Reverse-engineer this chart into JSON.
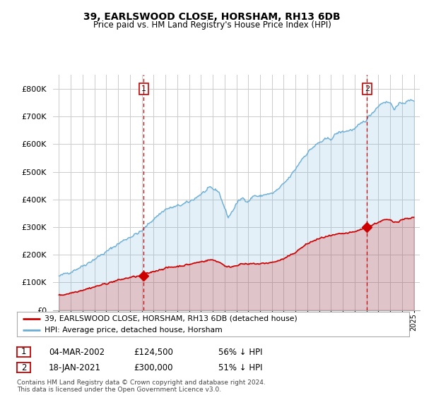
{
  "title": "39, EARLSWOOD CLOSE, HORSHAM, RH13 6DB",
  "subtitle": "Price paid vs. HM Land Registry's House Price Index (HPI)",
  "legend_line1": "39, EARLSWOOD CLOSE, HORSHAM, RH13 6DB (detached house)",
  "legend_line2": "HPI: Average price, detached house, Horsham",
  "sale1_date": "04-MAR-2002",
  "sale1_price": "£124,500",
  "sale1_hpi": "56% ↓ HPI",
  "sale2_date": "18-JAN-2021",
  "sale2_price": "£300,000",
  "sale2_hpi": "51% ↓ HPI",
  "footnote": "Contains HM Land Registry data © Crown copyright and database right 2024.\nThis data is licensed under the Open Government Licence v3.0.",
  "hpi_color": "#6baed6",
  "price_color": "#cc0000",
  "vline_color": "#cc0000",
  "background_color": "#ffffff",
  "grid_color": "#cccccc",
  "ylim": [
    0,
    850000
  ],
  "yticks": [
    0,
    100000,
    200000,
    300000,
    400000,
    500000,
    600000,
    700000,
    800000
  ],
  "sale1_year": 2002.17,
  "sale1_value": 124500,
  "sale2_year": 2021.05,
  "sale2_value": 300000
}
